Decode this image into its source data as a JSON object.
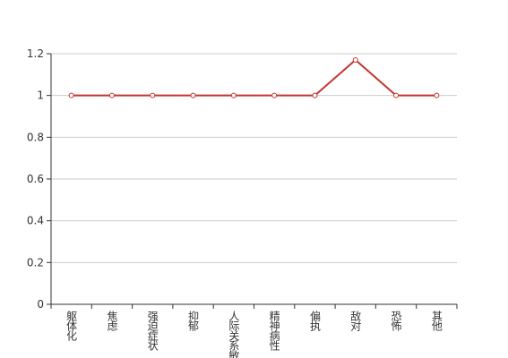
{
  "chart_data": {
    "type": "line",
    "categories": [
      "躯体化",
      "焦虑",
      "强迫症状",
      "抑郁",
      "人际关系敏感",
      "精神病性",
      "偏执",
      "敌对",
      "恐怖",
      "其他"
    ],
    "series": [
      {
        "color": "#c23531",
        "values": [
          1,
          1,
          1,
          1,
          1,
          1,
          1,
          1.17,
          1,
          1
        ]
      }
    ],
    "ylim": [
      0,
      1.2
    ],
    "yticks": [
      0,
      0.2,
      0.4,
      0.6,
      0.8,
      1,
      1.2
    ],
    "grid": true
  }
}
